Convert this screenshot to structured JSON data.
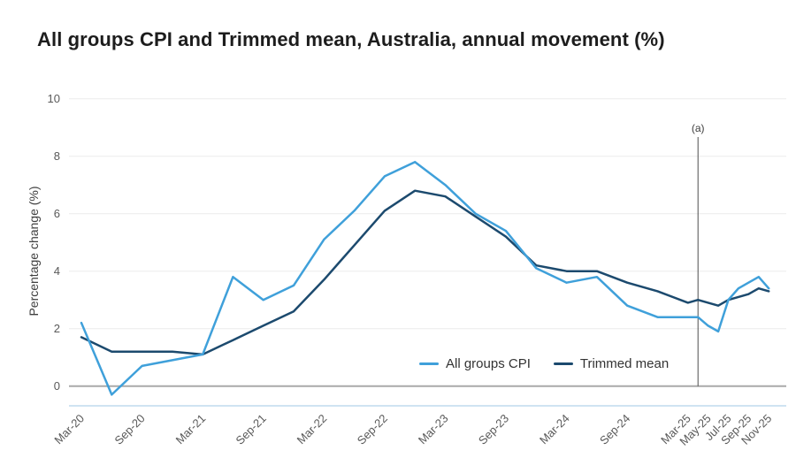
{
  "chart_data": {
    "type": "line",
    "title": "All groups CPI and Trimmed mean, Australia, annual movement (%)",
    "ylabel": "Percentage change (%)",
    "ylim": [
      -0.75,
      10.1
    ],
    "yticks": [
      0,
      2,
      4,
      6,
      8,
      10
    ],
    "grid": "horizontal",
    "legend_position": "inside-bottom-right",
    "x_unit": "months since Mar-2020; quarterly to Mar-25 then monthly",
    "periods": [
      "Mar-20",
      "Jun-20",
      "Sep-20",
      "Dec-20",
      "Mar-21",
      "Jun-21",
      "Sep-21",
      "Dec-21",
      "Mar-22",
      "Jun-22",
      "Sep-22",
      "Dec-22",
      "Mar-23",
      "Jun-23",
      "Sep-23",
      "Dec-23",
      "Mar-24",
      "Jun-24",
      "Sep-24",
      "Dec-24",
      "Mar-25",
      "Apr-25",
      "May-25",
      "Jun-25",
      "Jul-25",
      "Aug-25",
      "Sep-25",
      "Oct-25",
      "Nov-25"
    ],
    "x_months": [
      0,
      3,
      6,
      9,
      12,
      15,
      18,
      21,
      24,
      27,
      30,
      33,
      36,
      39,
      42,
      45,
      48,
      51,
      54,
      57,
      60,
      61,
      62,
      63,
      64,
      65,
      66,
      67,
      68
    ],
    "xticks": [
      {
        "label": "Mar-20",
        "month": 0
      },
      {
        "label": "Sep-20",
        "month": 6
      },
      {
        "label": "Mar-21",
        "month": 12
      },
      {
        "label": "Sep-21",
        "month": 18
      },
      {
        "label": "Mar-22",
        "month": 24
      },
      {
        "label": "Sep-22",
        "month": 30
      },
      {
        "label": "Mar-23",
        "month": 36
      },
      {
        "label": "Sep-23",
        "month": 42
      },
      {
        "label": "Mar-24",
        "month": 48
      },
      {
        "label": "Sep-24",
        "month": 54
      },
      {
        "label": "Mar-25",
        "month": 60
      },
      {
        "label": "May-25",
        "month": 62
      },
      {
        "label": "Jul-25",
        "month": 64
      },
      {
        "label": "Sep-25",
        "month": 66
      },
      {
        "label": "Nov-25",
        "month": 68
      }
    ],
    "series": [
      {
        "name": "All groups CPI",
        "color": "#3fa0da",
        "values": [
          2.2,
          -0.3,
          0.7,
          0.9,
          1.1,
          3.8,
          3.0,
          3.5,
          5.1,
          6.1,
          7.3,
          7.8,
          7.0,
          6.0,
          5.4,
          4.1,
          3.6,
          3.8,
          2.8,
          2.4,
          2.4,
          2.4,
          2.1,
          1.9,
          3.0,
          3.4,
          3.6,
          3.8,
          3.4
        ]
      },
      {
        "name": "Trimmed mean",
        "color": "#1c4a6e",
        "values": [
          1.7,
          1.2,
          1.2,
          1.2,
          1.1,
          1.6,
          2.1,
          2.6,
          3.7,
          4.9,
          6.1,
          6.8,
          6.6,
          5.9,
          5.2,
          4.2,
          4.0,
          4.0,
          3.6,
          3.3,
          2.9,
          3.0,
          2.9,
          2.8,
          3.0,
          3.1,
          3.2,
          3.4,
          3.3
        ]
      }
    ],
    "annotation": {
      "label": "(a)",
      "month": 61
    },
    "colors": {
      "grid": "#ececec",
      "zero_line": "#a9a9a9",
      "axis_bottom": "#cfe3f2",
      "tick_label": "#595959",
      "annotation_line": "#4d4d4d",
      "annotation_text": "#3c3c3c",
      "title": "#1d1d1d",
      "legend_text": "#333333"
    }
  }
}
